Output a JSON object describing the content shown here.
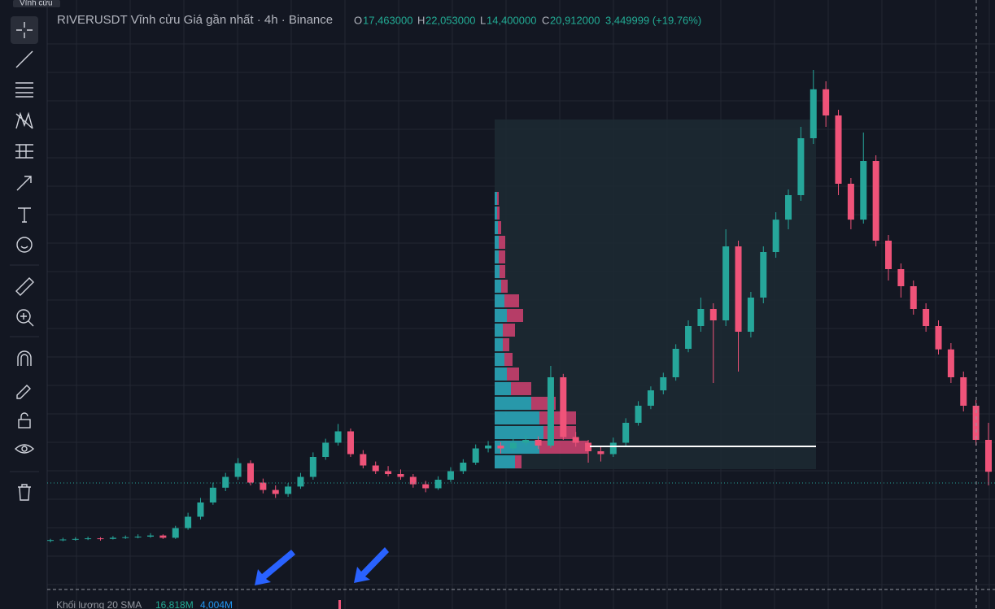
{
  "ui": {
    "tab": "Vĩnh cửu",
    "header": {
      "title": "RIVERUSDT Vĩnh cửu Giá gần nhất · 4h · Binance",
      "o_label": "O",
      "o": "17,463000",
      "h_label": "H",
      "h": "22,053000",
      "l_label": "L",
      "l": "14,400000",
      "c_label": "C",
      "c": "20,912000",
      "change": "3,449999 (+19.76%)"
    },
    "volume": {
      "label": "Khối lượng 20 SMA",
      "value1": "16,818M",
      "value2": "4,004M"
    }
  },
  "chart": {
    "type": "candlestick",
    "ylim": [
      0,
      100
    ],
    "up_color": "#26a69a",
    "down_color": "#ef5379",
    "candles": [
      [
        9.3,
        9.6,
        9.0,
        9.4
      ],
      [
        9.4,
        9.8,
        9.2,
        9.5
      ],
      [
        9.5,
        9.9,
        9.3,
        9.6
      ],
      [
        9.6,
        10.0,
        9.4,
        9.7
      ],
      [
        9.7,
        9.9,
        9.3,
        9.6
      ],
      [
        9.6,
        10.1,
        9.5,
        9.8
      ],
      [
        9.8,
        10.2,
        9.6,
        9.9
      ],
      [
        9.9,
        10.4,
        9.7,
        10.0
      ],
      [
        10.0,
        10.6,
        9.8,
        10.2
      ],
      [
        10.2,
        10.4,
        9.6,
        9.8
      ],
      [
        9.8,
        11.9,
        9.6,
        11.5
      ],
      [
        11.5,
        14.2,
        11.2,
        13.5
      ],
      [
        13.5,
        16.8,
        13.0,
        16.0
      ],
      [
        16.0,
        19.5,
        15.6,
        18.6
      ],
      [
        18.6,
        21.2,
        18.0,
        20.5
      ],
      [
        20.5,
        23.8,
        20.0,
        22.9
      ],
      [
        22.9,
        23.4,
        19.0,
        19.5
      ],
      [
        19.5,
        20.2,
        17.6,
        18.2
      ],
      [
        18.2,
        19.0,
        16.8,
        17.5
      ],
      [
        17.5,
        19.4,
        17.0,
        18.8
      ],
      [
        18.8,
        21.2,
        18.4,
        20.5
      ],
      [
        20.5,
        24.8,
        20.0,
        24.0
      ],
      [
        24.0,
        27.2,
        23.5,
        26.5
      ],
      [
        26.5,
        29.8,
        26.0,
        28.5
      ],
      [
        28.5,
        29.0,
        24.0,
        24.5
      ],
      [
        24.5,
        25.2,
        22.0,
        22.5
      ],
      [
        22.5,
        23.2,
        21.0,
        21.5
      ],
      [
        21.5,
        22.4,
        20.6,
        21.0
      ],
      [
        21.0,
        21.8,
        20.0,
        20.5
      ],
      [
        20.5,
        21.0,
        18.6,
        19.2
      ],
      [
        19.2,
        19.8,
        17.8,
        18.5
      ],
      [
        18.5,
        20.6,
        18.2,
        20.0
      ],
      [
        20.0,
        22.2,
        19.6,
        21.5
      ],
      [
        21.5,
        23.6,
        21.0,
        23.0
      ],
      [
        23.0,
        26.2,
        22.6,
        25.5
      ],
      [
        25.5,
        26.8,
        24.8,
        26.0
      ],
      [
        26.0,
        26.6,
        24.6,
        25.5
      ],
      [
        25.5,
        27.2,
        25.0,
        26.5
      ],
      [
        26.5,
        27.8,
        26.0,
        27.0
      ],
      [
        27.0,
        27.6,
        25.4,
        26.0
      ],
      [
        26.0,
        40.0,
        25.6,
        38.0
      ],
      [
        38.0,
        38.6,
        27.0,
        27.5
      ],
      [
        27.5,
        28.4,
        25.8,
        26.5
      ],
      [
        26.5,
        27.0,
        23.0,
        25.0
      ],
      [
        25.0,
        25.8,
        23.2,
        24.5
      ],
      [
        24.5,
        27.4,
        24.0,
        26.5
      ],
      [
        26.5,
        30.8,
        26.0,
        30.0
      ],
      [
        30.0,
        33.8,
        29.5,
        33.0
      ],
      [
        33.0,
        36.4,
        32.4,
        35.7
      ],
      [
        35.7,
        38.8,
        35.0,
        38.0
      ],
      [
        38.0,
        43.8,
        37.4,
        43.0
      ],
      [
        43.0,
        48.0,
        42.4,
        47.0
      ],
      [
        47.0,
        52.0,
        46.0,
        50.0
      ],
      [
        50.0,
        51.0,
        37.0,
        48.0
      ],
      [
        48.0,
        64.0,
        47.0,
        61.0
      ],
      [
        61.0,
        62.0,
        39.0,
        46.0
      ],
      [
        46.0,
        53.0,
        45.0,
        52.0
      ],
      [
        52.0,
        61.0,
        51.0,
        60.0
      ],
      [
        60.0,
        67.0,
        59.0,
        65.7
      ],
      [
        65.7,
        71.0,
        64.0,
        70.0
      ],
      [
        70.0,
        82.0,
        69.0,
        80.0
      ],
      [
        80.0,
        92.0,
        79.0,
        88.6
      ],
      [
        88.6,
        90.0,
        82.0,
        84.0
      ],
      [
        84.0,
        85.0,
        70.0,
        72.0
      ],
      [
        72.0,
        73.0,
        64.0,
        65.7
      ],
      [
        65.7,
        81.0,
        65.0,
        76.0
      ],
      [
        76.0,
        77.0,
        61.0,
        62.0
      ],
      [
        62.0,
        63.0,
        55.0,
        57.0
      ],
      [
        57.0,
        58.0,
        52.0,
        54.0
      ],
      [
        54.0,
        55.0,
        49.0,
        50.0
      ],
      [
        50.0,
        51.0,
        46.0,
        47.0
      ],
      [
        47.0,
        48.0,
        42.0,
        42.9
      ],
      [
        42.9,
        44.0,
        37.0,
        38.0
      ],
      [
        38.0,
        39.0,
        32.0,
        33.0
      ],
      [
        33.0,
        34.0,
        26.0,
        27.0
      ],
      [
        27.0,
        30.0,
        19.0,
        21.4
      ]
    ],
    "profile_colors": [
      "#2aa5b8",
      "#c8406e"
    ],
    "profile": [
      [
        25,
        8
      ],
      [
        55,
        60
      ],
      [
        60,
        40
      ],
      [
        55,
        45
      ],
      [
        45,
        30
      ],
      [
        20,
        25
      ],
      [
        15,
        15
      ],
      [
        12,
        10
      ],
      [
        10,
        8
      ],
      [
        10,
        15
      ],
      [
        15,
        20
      ],
      [
        12,
        18
      ],
      [
        8,
        8
      ],
      [
        6,
        7
      ],
      [
        5,
        8
      ],
      [
        5,
        8
      ],
      [
        4,
        4
      ],
      [
        3,
        3
      ],
      [
        3,
        2
      ]
    ]
  }
}
